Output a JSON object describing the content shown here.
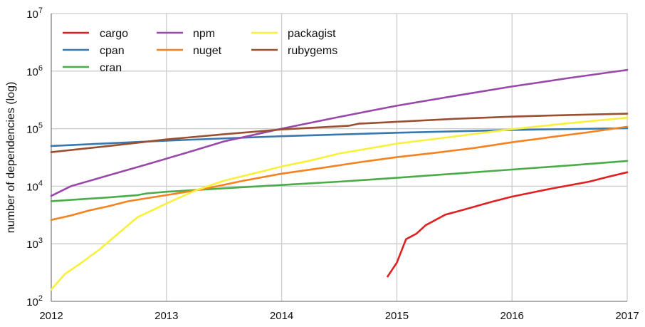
{
  "chart_data": {
    "type": "line",
    "title": "",
    "xlabel": "",
    "ylabel": "number of dependencies (log)",
    "y_scale": "log",
    "grid": true,
    "legend_position": "top-left",
    "xlim": [
      2012,
      2017
    ],
    "ylim": [
      100,
      10000000
    ],
    "x_ticks": [
      "2012",
      "2013",
      "2014",
      "2015",
      "2016",
      "2017"
    ],
    "y_ticks": [
      {
        "value": 100,
        "base": "10",
        "exp": "2"
      },
      {
        "value": 1000,
        "base": "10",
        "exp": "3"
      },
      {
        "value": 10000,
        "base": "10",
        "exp": "4"
      },
      {
        "value": 100000,
        "base": "10",
        "exp": "5"
      },
      {
        "value": 1000000,
        "base": "10",
        "exp": "6"
      },
      {
        "value": 10000000,
        "base": "10",
        "exp": "7"
      }
    ],
    "series": [
      {
        "name": "cargo",
        "color": "#e02020",
        "x": [
          2014.92,
          2015.0,
          2015.08,
          2015.17,
          2015.25,
          2015.42,
          2015.58,
          2015.83,
          2016.0,
          2016.33,
          2016.67,
          2016.83,
          2017.0
        ],
        "y": [
          270,
          470,
          1200,
          1500,
          2100,
          3200,
          3900,
          5400,
          6600,
          9000,
          12000,
          14500,
          17500
        ]
      },
      {
        "name": "cpan",
        "color": "#3878b0",
        "x": [
          2012.0,
          2013.0,
          2014.0,
          2015.0,
          2016.0,
          2017.0
        ],
        "y": [
          50000,
          62000,
          74000,
          85000,
          95000,
          102000
        ]
      },
      {
        "name": "cran",
        "color": "#4aac46",
        "x": [
          2012.0,
          2012.5,
          2012.75,
          2012.83,
          2013.0,
          2013.5,
          2014.0,
          2014.5,
          2015.0,
          2015.5,
          2016.0,
          2016.5,
          2017.0
        ],
        "y": [
          5500,
          6400,
          7000,
          7500,
          8000,
          9200,
          10500,
          12000,
          14000,
          16500,
          19500,
          23000,
          27500
        ]
      },
      {
        "name": "npm",
        "color": "#9848a8",
        "x": [
          2012.0,
          2012.17,
          2012.5,
          2012.83,
          2013.17,
          2013.5,
          2014.0,
          2014.5,
          2015.0,
          2015.5,
          2016.0,
          2016.5,
          2017.0
        ],
        "y": [
          6800,
          10000,
          15500,
          24000,
          38000,
          60000,
          100000,
          160000,
          250000,
          370000,
          540000,
          760000,
          1050000
        ]
      },
      {
        "name": "nuget",
        "color": "#f5821f",
        "x": [
          2012.0,
          2012.17,
          2012.33,
          2012.5,
          2012.67,
          2013.0,
          2013.33,
          2013.67,
          2014.0,
          2014.33,
          2014.67,
          2015.0,
          2015.33,
          2015.67,
          2016.0,
          2016.33,
          2016.67,
          2017.0
        ],
        "y": [
          2600,
          3100,
          3800,
          4500,
          5500,
          7000,
          9000,
          12500,
          16500,
          20500,
          26000,
          32000,
          38000,
          46000,
          58000,
          71000,
          87000,
          108000
        ]
      },
      {
        "name": "packagist",
        "color": "#f8f03a",
        "x": [
          2012.0,
          2012.12,
          2012.25,
          2012.42,
          2012.58,
          2012.75,
          2013.0,
          2013.25,
          2013.5,
          2013.75,
          2014.0,
          2014.25,
          2014.5,
          2014.75,
          2015.0,
          2015.5,
          2016.0,
          2016.5,
          2017.0
        ],
        "y": [
          160,
          300,
          450,
          800,
          1500,
          2900,
          5000,
          8400,
          12500,
          16500,
          22000,
          28000,
          37000,
          45000,
          55000,
          73000,
          98000,
          125000,
          155000
        ]
      },
      {
        "name": "rubygems",
        "color": "#9a5030",
        "x": [
          2012.0,
          2012.5,
          2013.0,
          2013.5,
          2014.0,
          2014.58,
          2014.67,
          2015.0,
          2015.5,
          2016.0,
          2016.5,
          2017.0
        ],
        "y": [
          39000,
          50000,
          65000,
          80000,
          97000,
          112000,
          122000,
          132000,
          148000,
          162000,
          173000,
          182000
        ]
      }
    ]
  }
}
